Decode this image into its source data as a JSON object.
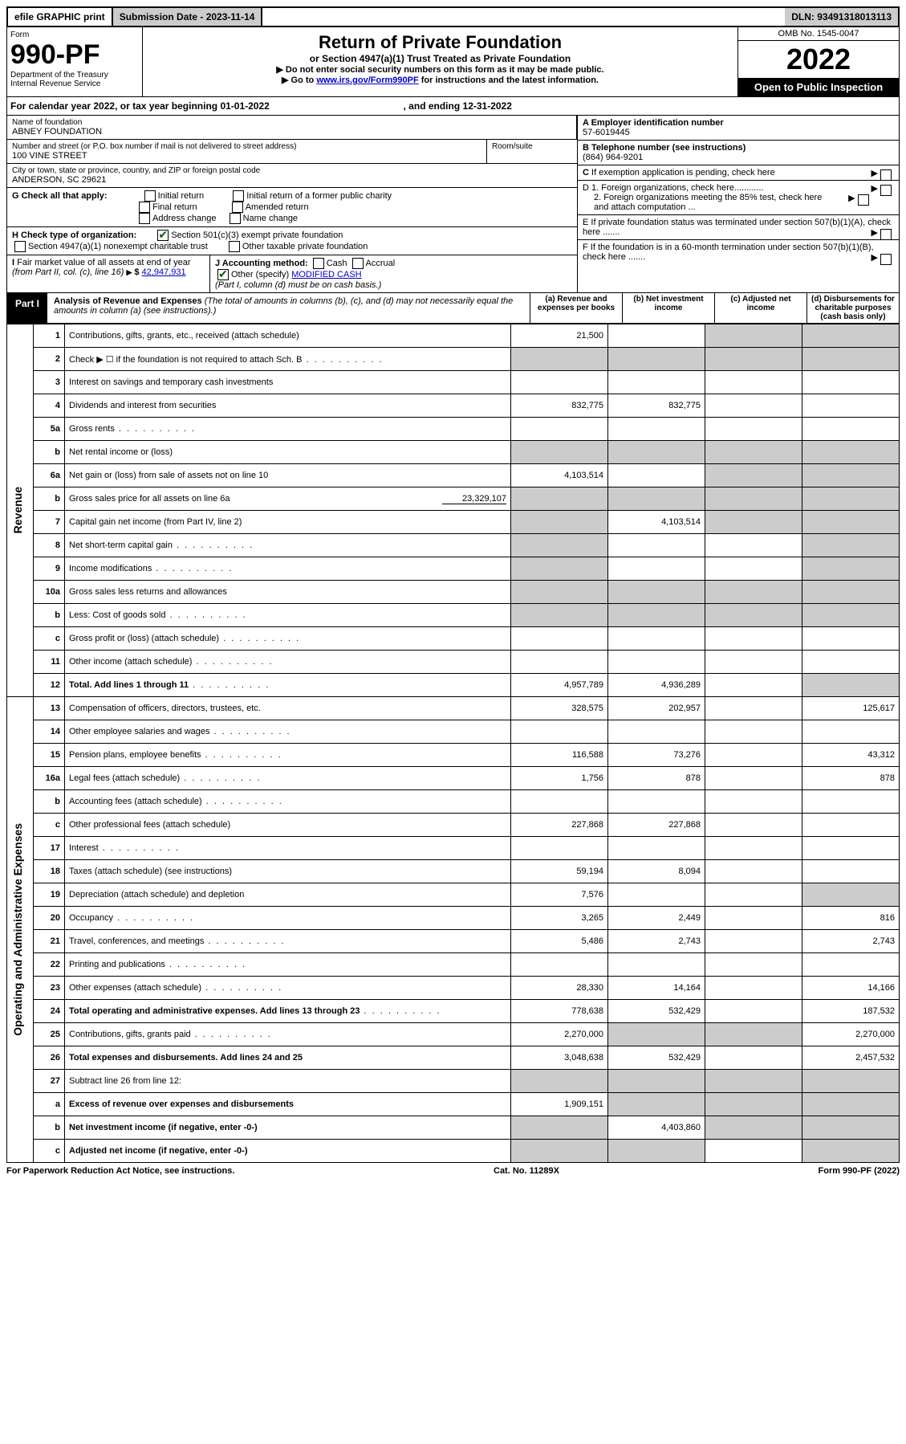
{
  "topbar": {
    "efile": "efile GRAPHIC print",
    "sub_label": "Submission Date - 2023-11-14",
    "dln": "DLN: 93491318013113"
  },
  "header": {
    "form_word": "Form",
    "form_no": "990-PF",
    "dept": "Department of the Treasury",
    "irs": "Internal Revenue Service",
    "title": "Return of Private Foundation",
    "subtitle": "or Section 4947(a)(1) Trust Treated as Private Foundation",
    "instr1": "▶ Do not enter social security numbers on this form as it may be made public.",
    "instr2_pre": "▶ Go to ",
    "instr2_link": "www.irs.gov/Form990PF",
    "instr2_post": " for instructions and the latest information.",
    "omb": "OMB No. 1545-0047",
    "year": "2022",
    "inspect": "Open to Public Inspection"
  },
  "calyear": {
    "text_a": "For calendar year 2022, or tax year beginning 01-01-2022",
    "text_b": ", and ending 12-31-2022"
  },
  "org": {
    "name_label": "Name of foundation",
    "name": "ABNEY FOUNDATION",
    "addr_label": "Number and street (or P.O. box number if mail is not delivered to street address)",
    "room_label": "Room/suite",
    "addr": "100 VINE STREET",
    "city_label": "City or town, state or province, country, and ZIP or foreign postal code",
    "city": "ANDERSON, SC  29621",
    "ein_label": "A Employer identification number",
    "ein": "57-6019445",
    "tel_label": "B Telephone number (see instructions)",
    "tel": "(864) 964-9201",
    "c_label": "C If exemption application is pending, check here",
    "d1": "D 1. Foreign organizations, check here............",
    "d2": "2. Foreign organizations meeting the 85% test, check here and attach computation ...",
    "e": "E  If private foundation status was terminated under section 507(b)(1)(A), check here .......",
    "f": "F  If the foundation is in a 60-month termination under section 507(b)(1)(B), check here .......",
    "g_label": "G Check all that apply:",
    "g_opts": [
      "Initial return",
      "Final return",
      "Address change",
      "Initial return of a former public charity",
      "Amended return",
      "Name change"
    ],
    "h_label": "H Check type of organization:",
    "h1": "Section 501(c)(3) exempt private foundation",
    "h2": "Section 4947(a)(1) nonexempt charitable trust",
    "h3": "Other taxable private foundation",
    "i_label": "I Fair market value of all assets at end of year (from Part II, col. (c), line 16)",
    "i_val": "42,947,931",
    "j_label": "J Accounting method:",
    "j_cash": "Cash",
    "j_accrual": "Accrual",
    "j_other": "Other (specify)",
    "j_other_val": "MODIFIED CASH",
    "j_note": "(Part I, column (d) must be on cash basis.)"
  },
  "part1": {
    "label": "Part I",
    "title": "Analysis of Revenue and Expenses",
    "note": " (The total of amounts in columns (b), (c), and (d) may not necessarily equal the amounts in column (a) (see instructions).)",
    "col_a": "(a)   Revenue and expenses per books",
    "col_b": "(b)   Net investment income",
    "col_c": "(c)   Adjusted net income",
    "col_d": "(d)   Disbursements for charitable purposes (cash basis only)"
  },
  "side": {
    "rev": "Revenue",
    "exp": "Operating and Administrative Expenses"
  },
  "rows": {
    "r1": {
      "n": "1",
      "d": "Contributions, gifts, grants, etc., received (attach schedule)",
      "a": "21,500",
      "b": "",
      "c": "",
      "dd": ""
    },
    "r2": {
      "n": "2",
      "d": "Check ▶ ☐ if the foundation is not required to attach Sch. B",
      "dots": true
    },
    "r3": {
      "n": "3",
      "d": "Interest on savings and temporary cash investments"
    },
    "r4": {
      "n": "4",
      "d": "Dividends and interest from securities",
      "a": "832,775",
      "b": "832,775"
    },
    "r5a": {
      "n": "5a",
      "d": "Gross rents",
      "dots": true
    },
    "r5b": {
      "n": "b",
      "d": "Net rental income or (loss)"
    },
    "r6a": {
      "n": "6a",
      "d": "Net gain or (loss) from sale of assets not on line 10",
      "a": "4,103,514"
    },
    "r6b": {
      "n": "b",
      "d": "Gross sales price for all assets on line 6a",
      "inline": "23,329,107"
    },
    "r7": {
      "n": "7",
      "d": "Capital gain net income (from Part IV, line 2)",
      "b": "4,103,514"
    },
    "r8": {
      "n": "8",
      "d": "Net short-term capital gain",
      "dots": true
    },
    "r9": {
      "n": "9",
      "d": "Income modifications",
      "dots": true
    },
    "r10a": {
      "n": "10a",
      "d": "Gross sales less returns and allowances"
    },
    "r10b": {
      "n": "b",
      "d": "Less: Cost of goods sold",
      "dots": true
    },
    "r10c": {
      "n": "c",
      "d": "Gross profit or (loss) (attach schedule)",
      "dots": true
    },
    "r11": {
      "n": "11",
      "d": "Other income (attach schedule)",
      "dots": true
    },
    "r12": {
      "n": "12",
      "d": "Total. Add lines 1 through 11",
      "bold": true,
      "dots": true,
      "a": "4,957,789",
      "b": "4,936,289"
    },
    "r13": {
      "n": "13",
      "d": "Compensation of officers, directors, trustees, etc.",
      "a": "328,575",
      "b": "202,957",
      "dd": "125,617"
    },
    "r14": {
      "n": "14",
      "d": "Other employee salaries and wages",
      "dots": true
    },
    "r15": {
      "n": "15",
      "d": "Pension plans, employee benefits",
      "dots": true,
      "a": "116,588",
      "b": "73,276",
      "dd": "43,312"
    },
    "r16a": {
      "n": "16a",
      "d": "Legal fees (attach schedule)",
      "dots": true,
      "a": "1,756",
      "b": "878",
      "dd": "878"
    },
    "r16b": {
      "n": "b",
      "d": "Accounting fees (attach schedule)",
      "dots": true
    },
    "r16c": {
      "n": "c",
      "d": "Other professional fees (attach schedule)",
      "a": "227,868",
      "b": "227,868"
    },
    "r17": {
      "n": "17",
      "d": "Interest",
      "dots": true
    },
    "r18": {
      "n": "18",
      "d": "Taxes (attach schedule) (see instructions)",
      "a": "59,194",
      "b": "8,094"
    },
    "r19": {
      "n": "19",
      "d": "Depreciation (attach schedule) and depletion",
      "a": "7,576"
    },
    "r20": {
      "n": "20",
      "d": "Occupancy",
      "dots": true,
      "a": "3,265",
      "b": "2,449",
      "dd": "816"
    },
    "r21": {
      "n": "21",
      "d": "Travel, conferences, and meetings",
      "dots": true,
      "a": "5,486",
      "b": "2,743",
      "dd": "2,743"
    },
    "r22": {
      "n": "22",
      "d": "Printing and publications",
      "dots": true
    },
    "r23": {
      "n": "23",
      "d": "Other expenses (attach schedule)",
      "dots": true,
      "a": "28,330",
      "b": "14,164",
      "dd": "14,166"
    },
    "r24": {
      "n": "24",
      "d": "Total operating and administrative expenses. Add lines 13 through 23",
      "bold": true,
      "dots": true,
      "a": "778,638",
      "b": "532,429",
      "dd": "187,532"
    },
    "r25": {
      "n": "25",
      "d": "Contributions, gifts, grants paid",
      "dots": true,
      "a": "2,270,000",
      "dd": "2,270,000"
    },
    "r26": {
      "n": "26",
      "d": "Total expenses and disbursements. Add lines 24 and 25",
      "bold": true,
      "a": "3,048,638",
      "b": "532,429",
      "dd": "2,457,532"
    },
    "r27": {
      "n": "27",
      "d": "Subtract line 26 from line 12:"
    },
    "r27a": {
      "n": "a",
      "d": "Excess of revenue over expenses and disbursements",
      "bold": true,
      "a": "1,909,151"
    },
    "r27b": {
      "n": "b",
      "d": "Net investment income (if negative, enter -0-)",
      "bold": true,
      "b": "4,403,860"
    },
    "r27c": {
      "n": "c",
      "d": "Adjusted net income (if negative, enter -0-)",
      "bold": true
    }
  },
  "grey": {
    "r1": [
      "c",
      "dd"
    ],
    "r2": [
      "a",
      "b",
      "c",
      "dd"
    ],
    "r5b": [
      "a",
      "b",
      "c",
      "dd"
    ],
    "r6a": [
      "c",
      "dd"
    ],
    "r6b": [
      "a",
      "b",
      "c",
      "dd"
    ],
    "r7": [
      "a",
      "c",
      "dd"
    ],
    "r8": [
      "a",
      "dd"
    ],
    "r9": [
      "a",
      "dd"
    ],
    "r10a": [
      "a",
      "b",
      "c",
      "dd"
    ],
    "r10b": [
      "a",
      "b",
      "c",
      "dd"
    ],
    "r12": [
      "dd"
    ],
    "r19": [
      "dd"
    ],
    "r25": [
      "b",
      "c"
    ],
    "r27": [
      "a",
      "b",
      "c",
      "dd"
    ],
    "r27a": [
      "b",
      "c",
      "dd"
    ],
    "r27b": [
      "a",
      "c",
      "dd"
    ],
    "r27c": [
      "a",
      "b",
      "dd"
    ]
  },
  "order": [
    "r1",
    "r2",
    "r3",
    "r4",
    "r5a",
    "r5b",
    "r6a",
    "r6b",
    "r7",
    "r8",
    "r9",
    "r10a",
    "r10b",
    "r10c",
    "r11",
    "r12",
    "r13",
    "r14",
    "r15",
    "r16a",
    "r16b",
    "r16c",
    "r17",
    "r18",
    "r19",
    "r20",
    "r21",
    "r22",
    "r23",
    "r24",
    "r25",
    "r26",
    "r27",
    "r27a",
    "r27b",
    "r27c"
  ],
  "footer": {
    "left": "For Paperwork Reduction Act Notice, see instructions.",
    "mid": "Cat. No. 11289X",
    "right": "Form 990-PF (2022)"
  }
}
